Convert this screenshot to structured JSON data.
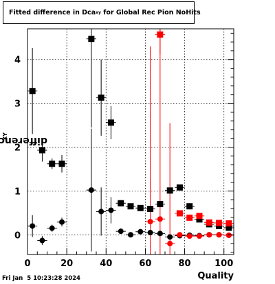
{
  "title": {
    "main": "Fitted difference in Dca",
    "sub": "xy",
    "rest": " for Global Rec Pion NoHits"
  },
  "timestamp": "Fri Jan  5 10:23:28 2024",
  "chart_data": {
    "type": "scatter",
    "xlabel": "Quality",
    "ylabel": {
      "main": "difference in Dca",
      "sub": "XY"
    },
    "xlim": [
      0,
      105
    ],
    "ylim": [
      -0.45,
      4.7
    ],
    "xticks": [
      0,
      20,
      40,
      60,
      80,
      100
    ],
    "yticks": [
      0,
      1,
      2,
      3,
      4
    ],
    "grid": true,
    "series": [
      {
        "marker": "square",
        "color": "#000000",
        "x": [
          2.5,
          7.5,
          12.5,
          17.5,
          32.5,
          37.5,
          42.5,
          47.5,
          52.5,
          57.5,
          62.5,
          67.5,
          72.5,
          77.5,
          82.5,
          87.5,
          92.5,
          97.5,
          102.5
        ],
        "y": [
          3.28,
          1.93,
          1.62,
          1.62,
          4.47,
          3.13,
          2.56,
          0.72,
          0.65,
          0.61,
          0.59,
          0.7,
          1.01,
          1.08,
          0.65,
          0.35,
          0.24,
          0.2,
          0.16
        ],
        "err": [
          0.98,
          0.26,
          0.12,
          0.2,
          2.02,
          0.87,
          0.38,
          0.06,
          0.06,
          0.05,
          0.05,
          0.05,
          0.04,
          0.03,
          0.03,
          0.02,
          0.02,
          0.02,
          0.02
        ]
      },
      {
        "marker": "circle",
        "color": "#000000",
        "x": [
          2.5,
          7.5,
          12.5,
          17.5,
          32.5,
          37.5,
          42.5,
          47.5,
          52.5,
          57.5,
          62.5,
          67.5,
          72.5,
          77.5,
          82.5,
          87.5,
          92.5,
          97.5,
          102.5
        ],
        "y": [
          0.2,
          -0.13,
          0.15,
          0.29,
          1.02,
          0.53,
          0.56,
          0.08,
          0.0,
          0.07,
          0.05,
          0.03,
          -0.05,
          -0.02,
          -0.01,
          -0.02,
          0.0,
          0.0,
          -0.01
        ],
        "err": [
          0.25,
          0.1,
          0.08,
          0.1,
          1.4,
          0.55,
          0.3,
          0.04,
          0.03,
          0.03,
          0.03,
          0.03,
          0.02,
          0.02,
          0.02,
          0.01,
          0.01,
          0.01,
          0.01
        ]
      },
      {
        "marker": "square",
        "color": "#ff0000",
        "x": [
          67.5,
          77.5,
          82.5,
          87.5,
          92.5,
          97.5,
          102.5
        ],
        "y": [
          4.57,
          0.49,
          0.39,
          0.43,
          0.28,
          0.27,
          0.26
        ],
        "err": [
          0.45,
          0.05,
          0.03,
          0.03,
          0.02,
          0.02,
          0.02
        ]
      },
      {
        "marker": "circle",
        "color": "#ff0000",
        "x": [
          62.5,
          67.5,
          72.5,
          77.5,
          82.5,
          87.5,
          92.5,
          97.5,
          102.5
        ],
        "y": [
          0.3,
          0.36,
          -0.2,
          0.0,
          -0.03,
          -0.03,
          0.0,
          0.0,
          -0.01
        ],
        "err": [
          4.0,
          4.6,
          2.75,
          0.03,
          0.02,
          0.02,
          0.02,
          0.02,
          0.02
        ]
      }
    ]
  }
}
